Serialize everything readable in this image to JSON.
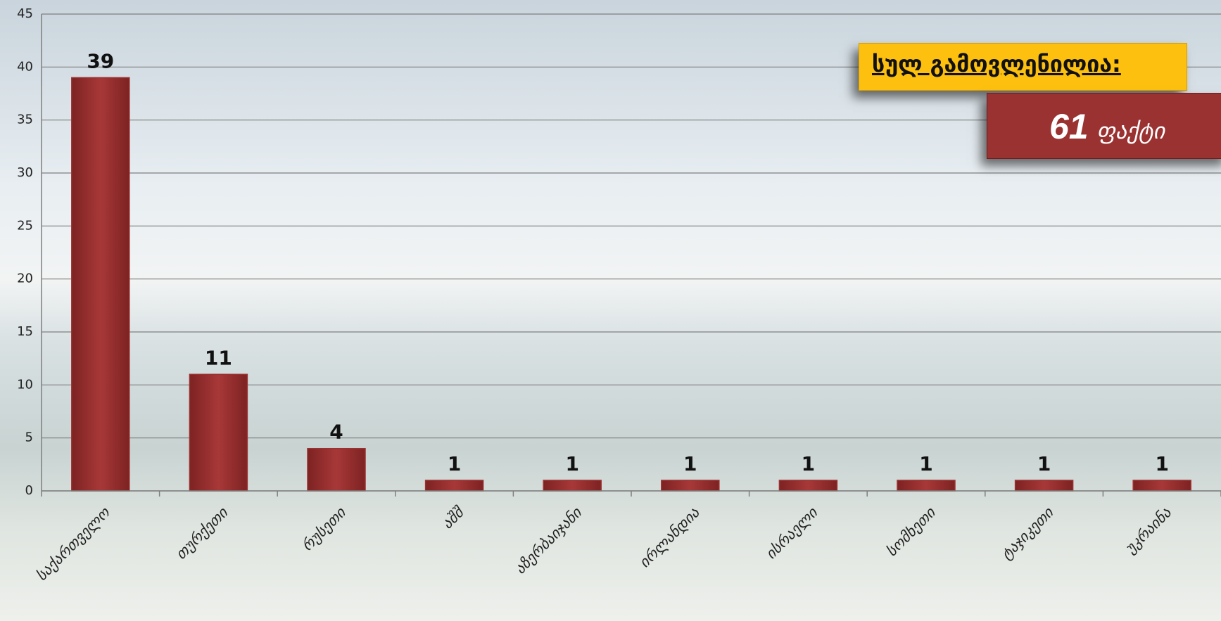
{
  "chart_data": {
    "type": "bar",
    "categories": [
      "საქართველო",
      "თურქეთი",
      "რუსეთი",
      "აშშ",
      "აზერბაიჯანი",
      "ირლანდია",
      "ისრაელი",
      "სომხეთი",
      "ტაჯიკეთი",
      "უკრაინა"
    ],
    "values": [
      39,
      11,
      4,
      1,
      1,
      1,
      1,
      1,
      1,
      1
    ],
    "color": "#9b3232",
    "ylim": [
      0,
      45
    ],
    "yticks": [
      0,
      5,
      10,
      15,
      20,
      25,
      30,
      35,
      40,
      45
    ],
    "grid": true,
    "total_label": "სულ გამოვლენილია:",
    "total_value": 61,
    "total_unit": "ფაქტი"
  }
}
